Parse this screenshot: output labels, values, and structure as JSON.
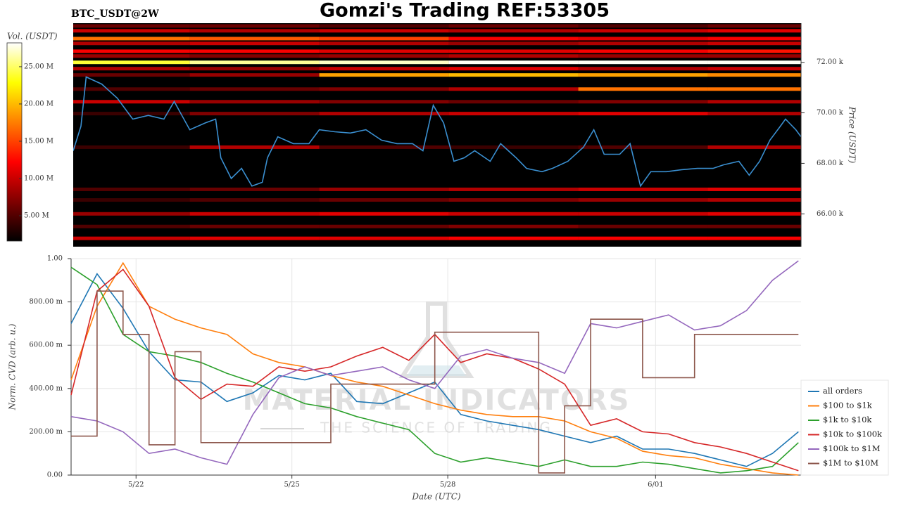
{
  "chart_data": [
    {
      "type": "heatmap",
      "title": "Gomzi's Trading REF:53305",
      "subtitle": "BTC_USDT@2W",
      "colorbar_label": "Vol. (USDT)",
      "ylabel": "Price (USDT)",
      "colormap": "hot",
      "zlim": [
        1600000,
        28200000
      ],
      "zticks": [
        {
          "value": 5000000,
          "label": "5.00 M"
        },
        {
          "value": 10000000,
          "label": "10.00 M"
        },
        {
          "value": 15000000,
          "label": "15.00 M"
        },
        {
          "value": 20000000,
          "label": "20.00 M"
        },
        {
          "value": 25000000,
          "label": "25.00 M"
        }
      ],
      "xlim": [
        20.75,
        34.8
      ],
      "ylim": [
        64700,
        73550
      ],
      "yticks": [
        {
          "value": 66000,
          "label": "66.00 k"
        },
        {
          "value": 68000,
          "label": "68.00 k"
        },
        {
          "value": 70000,
          "label": "70.00 k"
        },
        {
          "value": 72000,
          "label": "72.00 k"
        }
      ],
      "heatmap": {
        "x_edges": [
          20.75,
          23,
          25.5,
          28,
          30.5,
          33,
          34.8
        ],
        "levels": [
          {
            "price": 73440,
            "volumes": [
              6000000,
              6000000,
              5000000,
              6000000,
              5000000,
              6000000
            ]
          },
          {
            "price": 73250,
            "volumes": [
              10000000,
              9000000,
              10000000,
              9000000,
              10000000,
              11000000
            ]
          },
          {
            "price": 72940,
            "volumes": [
              17000000,
              16000000,
              15000000,
              12000000,
              11000000,
              12000000
            ]
          },
          {
            "price": 72750,
            "volumes": [
              9000000,
              10000000,
              9000000,
              8000000,
              9000000,
              10000000
            ]
          },
          {
            "price": 72440,
            "volumes": [
              12000000,
              12000000,
              11000000,
              11000000,
              12000000,
              13000000
            ]
          },
          {
            "price": 72250,
            "volumes": [
              8000000,
              7000000,
              8000000,
              9000000,
              8000000,
              8000000
            ]
          },
          {
            "price": 72000,
            "volumes": [
              24000000,
              26000000,
              27000000,
              28000000,
              28000000,
              28000000
            ]
          },
          {
            "price": 71750,
            "volumes": [
              9000000,
              8000000,
              10000000,
              11000000,
              9000000,
              10000000
            ]
          },
          {
            "price": 71500,
            "volumes": [
              6000000,
              8000000,
              19000000,
              20000000,
              19000000,
              18000000
            ]
          },
          {
            "price": 70940,
            "volumes": [
              5000000,
              6000000,
              7000000,
              9000000,
              17000000,
              17000000
            ]
          },
          {
            "price": 70440,
            "volumes": [
              10000000,
              8000000,
              7000000,
              6000000,
              7000000,
              9000000
            ]
          },
          {
            "price": 69970,
            "volumes": [
              4000000,
              7000000,
              9000000,
              10000000,
              11000000,
              9000000
            ]
          },
          {
            "price": 68640,
            "volumes": [
              4000000,
              9000000,
              5000000,
              4000000,
              5000000,
              9000000
            ]
          },
          {
            "price": 66970,
            "volumes": [
              5000000,
              6000000,
              8000000,
              9000000,
              10000000,
              11000000
            ]
          },
          {
            "price": 66550,
            "volumes": [
              4000000,
              5000000,
              6000000,
              7000000,
              8000000,
              9000000
            ]
          },
          {
            "price": 66000,
            "volumes": [
              8000000,
              10000000,
              11000000,
              10000000,
              10000000,
              11000000
            ]
          },
          {
            "price": 65500,
            "volumes": [
              5000000,
              6000000,
              6000000,
              7000000,
              6000000,
              6000000
            ]
          },
          {
            "price": 65030,
            "volumes": [
              10000000,
              11000000,
              11000000,
              12000000,
              12000000,
              12000000
            ]
          }
        ]
      },
      "x": [
        20.75,
        20.9,
        21.0,
        21.3,
        21.6,
        21.9,
        22.2,
        22.5,
        22.7,
        23.0,
        23.3,
        23.5,
        23.6,
        23.8,
        24.0,
        24.2,
        24.4,
        24.5,
        24.7,
        25.0,
        25.3,
        25.5,
        25.8,
        26.1,
        26.4,
        26.7,
        27.0,
        27.3,
        27.5,
        27.7,
        27.9,
        28.1,
        28.3,
        28.5,
        28.8,
        29.0,
        29.3,
        29.5,
        29.8,
        30.0,
        30.3,
        30.6,
        30.8,
        31.0,
        31.3,
        31.5,
        31.7,
        31.9,
        32.2,
        32.5,
        32.8,
        33.1,
        33.3,
        33.6,
        33.8,
        34.0,
        34.2,
        34.4,
        34.5,
        34.7,
        34.8
      ],
      "line": {
        "color": "#3a8fd0",
        "values": [
          68500,
          69470,
          71420,
          71140,
          70580,
          69750,
          69900,
          69750,
          70450,
          69330,
          69600,
          69750,
          68220,
          67400,
          67800,
          67100,
          67250,
          68220,
          69050,
          68780,
          68780,
          69330,
          69250,
          69200,
          69330,
          68920,
          68780,
          68780,
          68500,
          70300,
          69600,
          68080,
          68220,
          68500,
          68080,
          68780,
          68220,
          67800,
          67670,
          67800,
          68080,
          68640,
          69330,
          68360,
          68360,
          68780,
          67100,
          67670,
          67670,
          67750,
          67800,
          67800,
          67940,
          68080,
          67530,
          68080,
          68920,
          69470,
          69750,
          69330,
          69050
        ]
      }
    },
    {
      "type": "line",
      "xlabel": "Date (UTC)",
      "ylabel": "Norm. CVD (arb. u.)",
      "watermark": [
        "MATERIAL INDICATORS",
        "THE SCIENCE OF TRADING"
      ],
      "xlim": [
        20.75,
        34.8
      ],
      "xticks": [
        {
          "value": 22,
          "label": "5/22"
        },
        {
          "value": 25,
          "label": "5/25"
        },
        {
          "value": 28,
          "label": "5/28"
        },
        {
          "value": 32,
          "label": "6/01"
        }
      ],
      "ylim": [
        0,
        1
      ],
      "yticks": [
        {
          "value": 0,
          "label": "0.00"
        },
        {
          "value": 0.2,
          "label": "200.00 m"
        },
        {
          "value": 0.4,
          "label": "400.00 m"
        },
        {
          "value": 0.6,
          "label": "600.00 m"
        },
        {
          "value": 0.8,
          "label": "800.00 m"
        },
        {
          "value": 1,
          "label": "1.00"
        }
      ],
      "grid": true,
      "legend": "lower right",
      "x": [
        20.75,
        21.25,
        21.75,
        22.25,
        22.75,
        23.25,
        23.75,
        24.25,
        24.75,
        25.25,
        25.75,
        26.25,
        26.75,
        27.25,
        27.75,
        28.25,
        28.75,
        29.25,
        29.75,
        30.25,
        30.75,
        31.25,
        31.75,
        32.25,
        32.75,
        33.25,
        33.75,
        34.25,
        34.75
      ],
      "series": [
        {
          "name": "all orders",
          "color": "#1f77b4",
          "values": [
            0.7,
            0.93,
            0.77,
            0.57,
            0.44,
            0.43,
            0.34,
            0.38,
            0.46,
            0.44,
            0.47,
            0.34,
            0.33,
            0.38,
            0.43,
            0.28,
            0.25,
            0.23,
            0.21,
            0.18,
            0.15,
            0.18,
            0.12,
            0.12,
            0.1,
            0.07,
            0.04,
            0.1,
            0.2
          ]
        },
        {
          "name": "$100 to $1k",
          "color": "#ff7f0e",
          "values": [
            0.44,
            0.78,
            0.98,
            0.78,
            0.72,
            0.68,
            0.65,
            0.56,
            0.52,
            0.5,
            0.46,
            0.43,
            0.41,
            0.37,
            0.33,
            0.3,
            0.28,
            0.27,
            0.27,
            0.25,
            0.2,
            0.17,
            0.11,
            0.09,
            0.08,
            0.05,
            0.03,
            0.01,
            0.0
          ]
        },
        {
          "name": "$1k to $10k",
          "color": "#2ca02c",
          "values": [
            0.96,
            0.88,
            0.65,
            0.57,
            0.55,
            0.52,
            0.47,
            0.43,
            0.38,
            0.33,
            0.31,
            0.27,
            0.24,
            0.21,
            0.1,
            0.06,
            0.08,
            0.06,
            0.04,
            0.07,
            0.04,
            0.04,
            0.06,
            0.05,
            0.03,
            0.01,
            0.02,
            0.04,
            0.15
          ]
        },
        {
          "name": "$10k to $100k",
          "color": "#d62728",
          "values": [
            0.37,
            0.85,
            0.95,
            0.78,
            0.45,
            0.35,
            0.42,
            0.41,
            0.5,
            0.48,
            0.5,
            0.55,
            0.59,
            0.53,
            0.65,
            0.52,
            0.56,
            0.54,
            0.49,
            0.42,
            0.23,
            0.26,
            0.2,
            0.19,
            0.15,
            0.13,
            0.1,
            0.06,
            0.02
          ]
        },
        {
          "name": "$100k to $1M",
          "color": "#9467bd",
          "values": [
            0.27,
            0.25,
            0.2,
            0.1,
            0.12,
            0.08,
            0.05,
            0.28,
            0.45,
            0.5,
            0.46,
            0.48,
            0.5,
            0.44,
            0.4,
            0.55,
            0.58,
            0.54,
            0.52,
            0.47,
            0.7,
            0.68,
            0.71,
            0.74,
            0.67,
            0.69,
            0.76,
            0.9,
            0.99
          ]
        },
        {
          "name": "$1M to $10M",
          "color": "#8c564b",
          "step": true,
          "values": [
            0.18,
            0.85,
            0.65,
            0.14,
            0.57,
            0.15,
            0.15,
            0.15,
            0.15,
            0.15,
            0.42,
            0.42,
            0.42,
            0.42,
            0.66,
            0.66,
            0.66,
            0.66,
            0.01,
            0.32,
            0.72,
            0.72,
            0.45,
            0.45,
            0.65,
            0.65,
            0.65,
            0.65,
            0.65
          ]
        }
      ]
    }
  ]
}
